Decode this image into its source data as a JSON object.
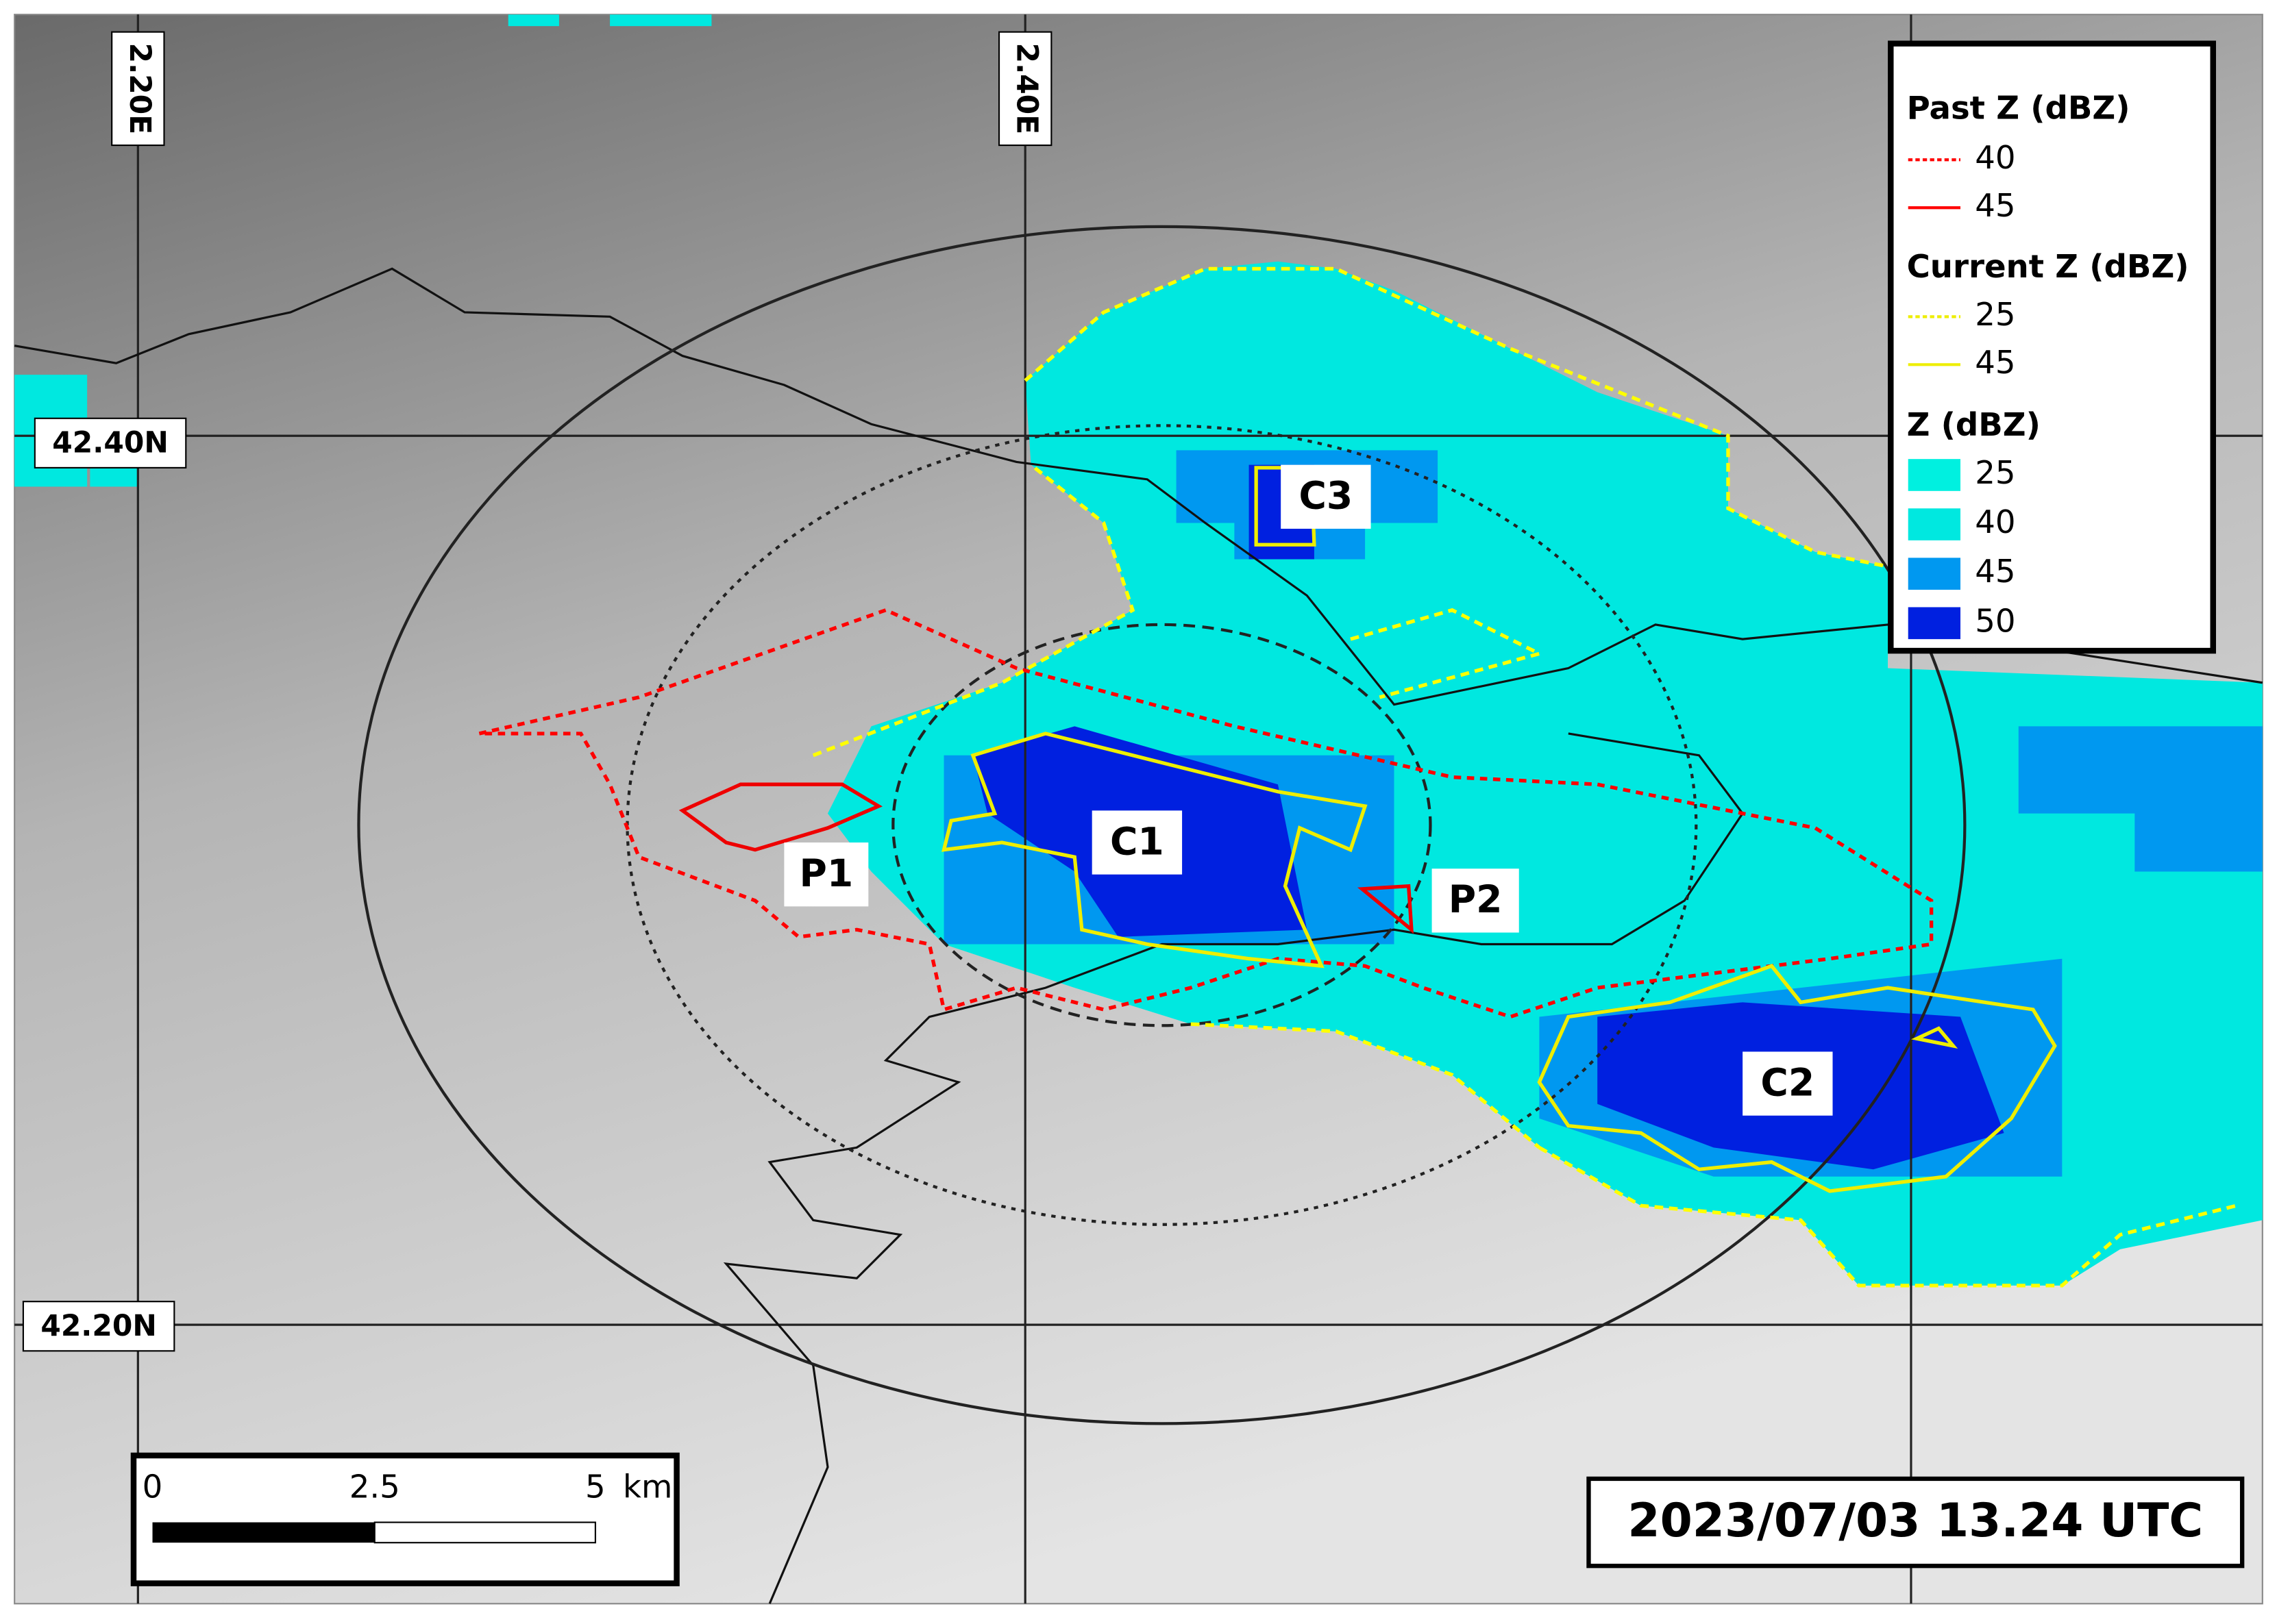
{
  "grid": {
    "longitudes": [
      "2.20E",
      "2.40E"
    ],
    "latitudes": [
      "42.40N",
      "42.20N"
    ]
  },
  "legend": {
    "sections": [
      {
        "title": "Past Z (dBZ)",
        "items": [
          40,
          45
        ]
      },
      {
        "title": "Current Z (dBZ)",
        "items": [
          25,
          45
        ]
      },
      {
        "title": "Z (dBZ)",
        "items": [
          25,
          40,
          45,
          50
        ]
      }
    ]
  },
  "cells": [
    "C1",
    "C2",
    "C3"
  ],
  "past_cells": [
    "P1",
    "P2"
  ],
  "scale_bar": {
    "labels": [
      0,
      2.5,
      5
    ],
    "unit": "km"
  },
  "timestamp": "2023/07/03 13.24 UTC"
}
